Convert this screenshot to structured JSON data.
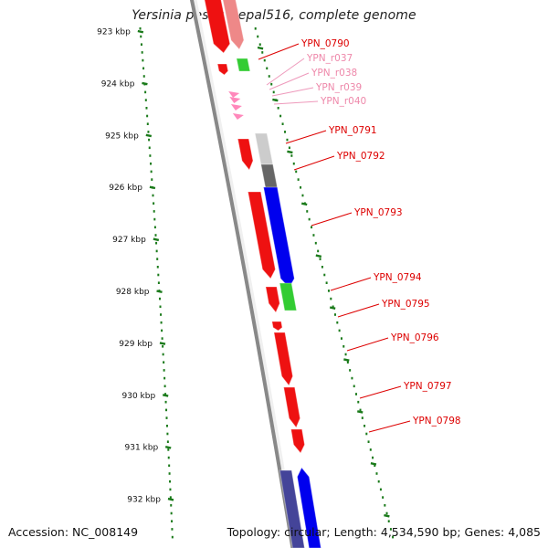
{
  "header": {
    "title": "Yersinia pestis Nepal516, complete genome"
  },
  "footer": {
    "accession": "Accession: NC_008149",
    "summary": "Topology: circular; Length: 4,534,590 bp; Genes: 4,085"
  },
  "colors": {
    "forward_gene": "#ff0000",
    "reverse_gene": "#0000ff",
    "rna_gene": "#ff88bb",
    "other_feature": "#33cc33",
    "pseudogene": "#aaaaaa",
    "scale_tick": "#1a7a1a",
    "backbone": "#888888"
  },
  "kbp_ticks": [
    "923 kbp",
    "924 kbp",
    "925 kbp",
    "926 kbp",
    "927 kbp",
    "928 kbp",
    "929 kbp",
    "930 kbp",
    "931 kbp",
    "932 kbp"
  ],
  "gene_labels": [
    {
      "text": "YPN_0790",
      "style": "red"
    },
    {
      "text": "YPN_r037",
      "style": "pink"
    },
    {
      "text": "YPN_r038",
      "style": "pink"
    },
    {
      "text": "YPN_r039",
      "style": "pink"
    },
    {
      "text": "YPN_r040",
      "style": "pink"
    },
    {
      "text": "YPN_0791",
      "style": "red"
    },
    {
      "text": "YPN_0792",
      "style": "red"
    },
    {
      "text": "YPN_0793",
      "style": "red"
    },
    {
      "text": "YPN_0794",
      "style": "red"
    },
    {
      "text": "YPN_0795",
      "style": "red"
    },
    {
      "text": "YPN_0796",
      "style": "red"
    },
    {
      "text": "YPN_0797",
      "style": "red"
    },
    {
      "text": "YPN_0798",
      "style": "red"
    }
  ]
}
